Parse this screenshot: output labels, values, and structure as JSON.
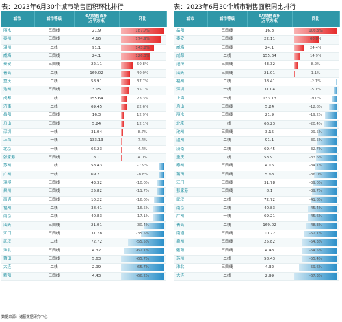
{
  "left_panel": {
    "title": "表：2023年6月30个城市销售面积环比排行",
    "headers": [
      "城市",
      "城市等级",
      "6月销售面积\n（万平方米）",
      "环比"
    ],
    "rows": [
      {
        "city": "丽水",
        "tier": "三四线",
        "area": "21.9",
        "pct": "187.7%",
        "value": 187.7
      },
      {
        "city": "泰州",
        "tier": "三四线",
        "area": "4.16",
        "pct": "174.9%",
        "value": 174.9
      },
      {
        "city": "温州",
        "tier": "二线",
        "area": "91.1",
        "pct": "143.2%",
        "value": 143.2
      },
      {
        "city": "威海",
        "tier": "三四线",
        "area": "24.1",
        "pct": "126.3%",
        "value": 126.3
      },
      {
        "city": "泰安",
        "tier": "三四线",
        "area": "22.11",
        "pct": "50.8%",
        "value": 50.8
      },
      {
        "city": "青岛",
        "tier": "二线",
        "area": "169.02",
        "pct": "40.0%",
        "value": 40.0
      },
      {
        "city": "重庆",
        "tier": "二线",
        "area": "58.91",
        "pct": "37.7%",
        "value": 37.7
      },
      {
        "city": "池州",
        "tier": "三四线",
        "area": "3.15",
        "pct": "35.1%",
        "value": 35.1
      },
      {
        "city": "成都",
        "tier": "二线",
        "area": "155.64",
        "pct": "23.3%",
        "value": 23.3
      },
      {
        "city": "济南",
        "tier": "二线",
        "area": "69.45",
        "pct": "22.6%",
        "value": 22.6
      },
      {
        "city": "岳阳",
        "tier": "三四线",
        "area": "16.3",
        "pct": "12.9%",
        "value": 12.9
      },
      {
        "city": "舟山",
        "tier": "三四线",
        "area": "5.24",
        "pct": "12.1%",
        "value": 12.1
      },
      {
        "city": "深圳",
        "tier": "一线",
        "area": "31.04",
        "pct": "8.7%",
        "value": 8.7
      },
      {
        "city": "上海",
        "tier": "一线",
        "area": "133.13",
        "pct": "7.4%",
        "value": 7.4
      },
      {
        "city": "北京",
        "tier": "一线",
        "area": "66.23",
        "pct": "4.4%",
        "value": 4.4
      },
      {
        "city": "张家港",
        "tier": "三四线",
        "area": "8.1",
        "pct": "4.0%",
        "value": 4.0
      },
      {
        "city": "苏州",
        "tier": "二线",
        "area": "58.43",
        "pct": "-7.9%",
        "value": -7.9
      },
      {
        "city": "广州",
        "tier": "一线",
        "area": "69.21",
        "pct": "-8.8%",
        "value": -8.8
      },
      {
        "city": "淄博",
        "tier": "三四线",
        "area": "43.32",
        "pct": "-10.0%",
        "value": -10.0
      },
      {
        "city": "泉州",
        "tier": "三四线",
        "area": "25.82",
        "pct": "-11.7%",
        "value": -11.7
      },
      {
        "city": "南通",
        "tier": "三四线",
        "area": "10.22",
        "pct": "-16.0%",
        "value": -16.0
      },
      {
        "city": "福州",
        "tier": "二线",
        "area": "38.41",
        "pct": "-16.5%",
        "value": -16.5
      },
      {
        "city": "南京",
        "tier": "二线",
        "area": "40.83",
        "pct": "-17.1%",
        "value": -17.1
      },
      {
        "city": "汕头",
        "tier": "三四线",
        "area": "21.01",
        "pct": "-30.4%",
        "value": -30.4
      },
      {
        "city": "江门",
        "tier": "三四线",
        "area": "31.78",
        "pct": "-35.5%",
        "value": -35.5
      },
      {
        "city": "武汉",
        "tier": "二线",
        "area": "72.72",
        "pct": "-55.5%",
        "value": -55.5
      },
      {
        "city": "淮北",
        "tier": "三四线",
        "area": "4.32",
        "pct": "-62.1%",
        "value": -62.1
      },
      {
        "city": "莆田",
        "tier": "三四线",
        "area": "5.63",
        "pct": "-65.7%",
        "value": -65.7
      },
      {
        "city": "大连",
        "tier": "二线",
        "area": "2.99",
        "pct": "-65.7%",
        "value": -65.7
      },
      {
        "city": "衢阳",
        "tier": "三四线",
        "area": "4.43",
        "pct": "-66.2%",
        "value": -66.2
      }
    ]
  },
  "right_panel": {
    "title": "表：2023年6月30个城市销售面积同比排行",
    "headers": [
      "城市",
      "城市等级",
      "6月销售面积\n（万平方米）",
      "同比"
    ],
    "rows": [
      {
        "city": "岳阳",
        "tier": "三四线",
        "area": "16.3",
        "pct": "106.5%",
        "value": 106.5
      },
      {
        "city": "泰安",
        "tier": "三四线",
        "area": "22.11",
        "pct": "60.8%",
        "value": 60.8
      },
      {
        "city": "威海",
        "tier": "三四线",
        "area": "24.1",
        "pct": "24.4%",
        "value": 24.4
      },
      {
        "city": "成都",
        "tier": "二线",
        "area": "155.64",
        "pct": "14.9%",
        "value": 14.9
      },
      {
        "city": "淄博",
        "tier": "三四线",
        "area": "43.32",
        "pct": "8.2%",
        "value": 8.2
      },
      {
        "city": "汕头",
        "tier": "三四线",
        "area": "21.01",
        "pct": "1.1%",
        "value": 1.1
      },
      {
        "city": "福州",
        "tier": "二线",
        "area": "38.41",
        "pct": "-2.1%",
        "value": -2.1
      },
      {
        "city": "深圳",
        "tier": "一线",
        "area": "31.04",
        "pct": "-5.1%",
        "value": -5.1
      },
      {
        "city": "上海",
        "tier": "一线",
        "area": "133.13",
        "pct": "-9.0%",
        "value": -9.0
      },
      {
        "city": "舟山",
        "tier": "三四线",
        "area": "5.24",
        "pct": "-12.8%",
        "value": -12.8
      },
      {
        "city": "丽水",
        "tier": "三四线",
        "area": "21.9",
        "pct": "-19.2%",
        "value": -19.2
      },
      {
        "city": "北京",
        "tier": "一线",
        "area": "66.23",
        "pct": "-20.4%",
        "value": -20.4
      },
      {
        "city": "池州",
        "tier": "三四线",
        "area": "3.15",
        "pct": "-29.5%",
        "value": -29.5
      },
      {
        "city": "温州",
        "tier": "二线",
        "area": "91.1",
        "pct": "-30.5%",
        "value": -30.5
      },
      {
        "city": "济南",
        "tier": "二线",
        "area": "69.45",
        "pct": "-32.7%",
        "value": -32.7
      },
      {
        "city": "重庆",
        "tier": "二线",
        "area": "58.91",
        "pct": "-33.6%",
        "value": -33.6
      },
      {
        "city": "泰州",
        "tier": "三四线",
        "area": "4.16",
        "pct": "-34.1%",
        "value": -34.1
      },
      {
        "city": "莆田",
        "tier": "三四线",
        "area": "5.63",
        "pct": "-36.0%",
        "value": -36.0
      },
      {
        "city": "江门",
        "tier": "三四线",
        "area": "31.78",
        "pct": "-39.0%",
        "value": -39.0
      },
      {
        "city": "张家港",
        "tier": "三四线",
        "area": "8.1",
        "pct": "-39.7%",
        "value": -39.7
      },
      {
        "city": "武汉",
        "tier": "二线",
        "area": "72.72",
        "pct": "-41.8%",
        "value": -41.8
      },
      {
        "city": "南京",
        "tier": "二线",
        "area": "40.83",
        "pct": "-45.4%",
        "value": -45.4
      },
      {
        "city": "广州",
        "tier": "一线",
        "area": "69.21",
        "pct": "-45.6%",
        "value": -45.6
      },
      {
        "city": "青岛",
        "tier": "二线",
        "area": "169.02",
        "pct": "-48.3%",
        "value": -48.3
      },
      {
        "city": "南通",
        "tier": "三四线",
        "area": "10.22",
        "pct": "-52.1%",
        "value": -52.1
      },
      {
        "city": "泉州",
        "tier": "三四线",
        "area": "25.82",
        "pct": "-54.3%",
        "value": -54.3
      },
      {
        "city": "衢阳",
        "tier": "三四线",
        "area": "4.43",
        "pct": "-54.5%",
        "value": -54.5
      },
      {
        "city": "苏州",
        "tier": "二线",
        "area": "58.43",
        "pct": "-55.4%",
        "value": -55.4
      },
      {
        "city": "淮北",
        "tier": "三四线",
        "area": "4.32",
        "pct": "-59.6%",
        "value": -59.6
      },
      {
        "city": "大连",
        "tier": "二线",
        "area": "2.99",
        "pct": "-67.3%",
        "value": -67.3
      }
    ]
  },
  "source": "数据来源：诸葛数据研究中心",
  "colors": {
    "header": "#2f97a8",
    "positive": "#e52b2b",
    "negative": "#2a8fc9",
    "city_text": "#1f8f9f"
  }
}
